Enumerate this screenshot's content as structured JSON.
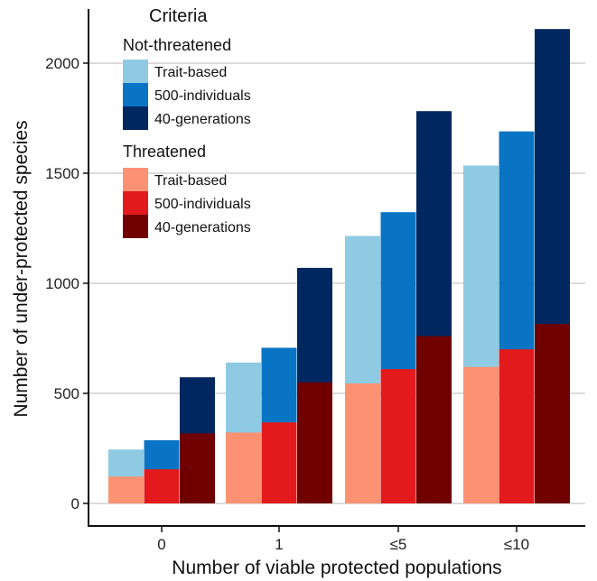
{
  "chart_data": {
    "type": "bar",
    "stacked_overlay": true,
    "categories": [
      "0",
      "1",
      "≤5",
      "≤10"
    ],
    "xlabel": "Number of viable protected populations",
    "ylabel": "Number of under-protected species",
    "ylim": [
      0,
      2250
    ],
    "yticks": [
      0,
      500,
      1000,
      1500,
      2000
    ],
    "grid": "horizontal",
    "legend": {
      "title": "Criteria",
      "position": "top-left",
      "groups": [
        {
          "name": "Not-threatened",
          "entries": [
            {
              "label": "Trait-based",
              "color": "#8ecbe3"
            },
            {
              "label": "500-individuals",
              "color": "#0a74c4"
            },
            {
              "label": "40-generations",
              "color": "#00275f"
            }
          ]
        },
        {
          "name": "Threatened",
          "entries": [
            {
              "label": "Trait-based",
              "color": "#fc9272"
            },
            {
              "label": "500-individuals",
              "color": "#e31a1c"
            },
            {
              "label": "40-generations",
              "color": "#700000"
            }
          ]
        }
      ]
    },
    "series": [
      {
        "criterion": "Trait-based",
        "total": [
          245,
          640,
          1215,
          1535
        ],
        "threatened": [
          122,
          322,
          545,
          620
        ]
      },
      {
        "criterion": "500-individuals",
        "total": [
          287,
          707,
          1323,
          1690
        ],
        "threatened": [
          155,
          368,
          610,
          700
        ]
      },
      {
        "criterion": "40-generations",
        "total": [
          573,
          1070,
          1782,
          2155
        ],
        "threatened": [
          318,
          550,
          760,
          815
        ]
      }
    ]
  }
}
